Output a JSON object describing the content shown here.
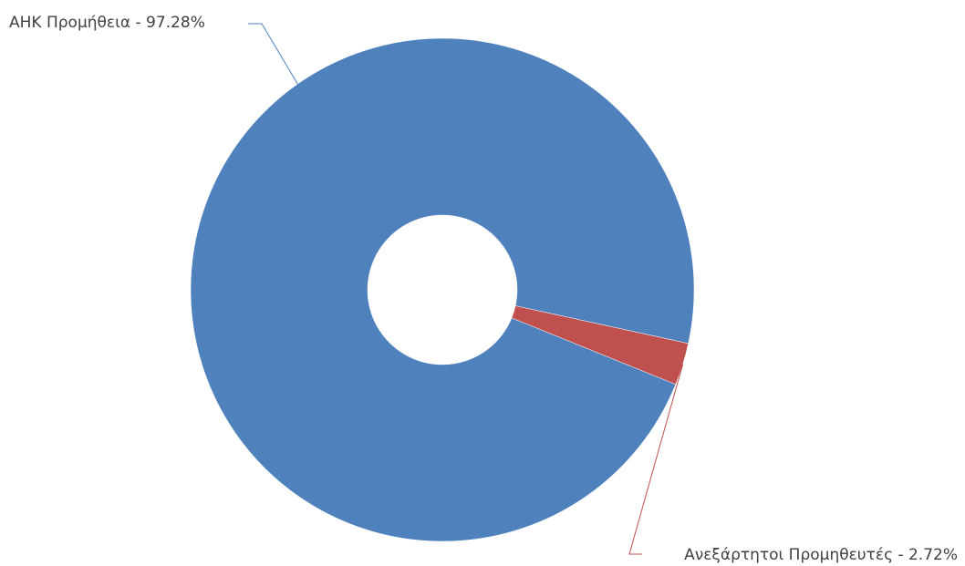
{
  "chart_data": {
    "type": "pie",
    "variant": "doughnut",
    "title": "",
    "categories": [
      "ΑΗΚ Προμήθεια",
      "Ανεξάρτητοι Προμηθευτές"
    ],
    "values": [
      97.28,
      2.72
    ],
    "unit": "%",
    "colors": [
      "#4F81BD",
      "#C0504D"
    ],
    "legend": "none",
    "labels": [
      "ΑΗΚ Προμήθεια - 97.28%",
      "Ανεξάρτητοι Προμηθευτές - 2.72%"
    ]
  }
}
